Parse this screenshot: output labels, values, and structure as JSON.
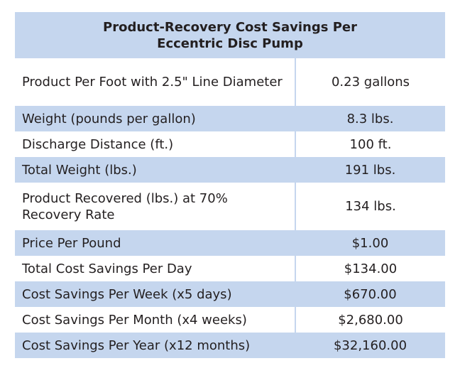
{
  "table": {
    "title_line1": "Product-Recovery Cost Savings Per",
    "title_line2": "Eccentric Disc Pump",
    "accent_color": "#c5d6ee",
    "rows": [
      {
        "label": "Product Per Foot with 2.5\" Line Diameter",
        "value": "0.23 gallons"
      },
      {
        "label": "Weight (pounds per gallon)",
        "value": "8.3 lbs."
      },
      {
        "label": "Discharge Distance (ft.)",
        "value": "100 ft."
      },
      {
        "label": "Total Weight (lbs.)",
        "value": "191 lbs."
      },
      {
        "label": "Product Recovered (lbs.) at 70% Recovery Rate",
        "value": "134 lbs."
      },
      {
        "label": "Price Per Pound",
        "value": "$1.00"
      },
      {
        "label": "Total Cost Savings Per Day",
        "value": "$134.00"
      },
      {
        "label": "Cost Savings Per Week (x5 days)",
        "value": "$670.00"
      },
      {
        "label": "Cost Savings Per Month (x4 weeks)",
        "value": "$2,680.00"
      },
      {
        "label": "Cost Savings Per Year (x12 months)",
        "value": "$32,160.00"
      }
    ]
  }
}
